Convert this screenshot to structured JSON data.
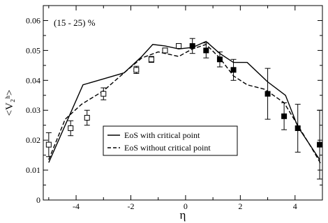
{
  "chart_data": {
    "type": "line",
    "annotation": "(15 - 25) %",
    "xlabel": "η",
    "ylabel": "<V₂ʰ>",
    "xlim": [
      -5.2,
      5.0
    ],
    "ylim": [
      0,
      0.065
    ],
    "x_ticks": [
      -4,
      -2,
      0,
      2,
      4
    ],
    "x_tick_labels": [
      "-4",
      "-2",
      "0",
      "2",
      "4"
    ],
    "y_ticks": [
      0,
      0.01,
      0.02,
      0.03,
      0.04,
      0.05,
      0.06
    ],
    "y_tick_labels": [
      "0",
      "0.01",
      "0.02",
      "0.03",
      "0.04",
      "0.05",
      "0.06"
    ],
    "grid": false,
    "legend_position": "lower-center",
    "series": [
      {
        "name": "EoS with critical point",
        "style": "solid",
        "color": "#000000",
        "x": [
          -5.0,
          -4.4,
          -3.75,
          -3.0,
          -2.25,
          -1.6,
          -1.2,
          -0.75,
          -0.25,
          0.25,
          0.75,
          1.25,
          1.75,
          2.25,
          3.0,
          3.65,
          4.1,
          4.5,
          4.9
        ],
        "y": [
          0.0125,
          0.025,
          0.0385,
          0.0405,
          0.0425,
          0.048,
          0.052,
          0.0515,
          0.0505,
          0.051,
          0.053,
          0.049,
          0.046,
          0.046,
          0.0395,
          0.035,
          0.0245,
          0.019,
          0.0135
        ]
      },
      {
        "name": "EoS without critical point",
        "style": "dashed",
        "color": "#000000",
        "x": [
          -5.0,
          -4.4,
          -3.8,
          -3.0,
          -2.25,
          -1.6,
          -1.0,
          -0.25,
          0.25,
          0.75,
          1.25,
          1.75,
          2.25,
          2.9,
          3.6,
          4.1,
          4.6,
          4.95
        ],
        "y": [
          0.0135,
          0.027,
          0.032,
          0.0365,
          0.0425,
          0.0475,
          0.0495,
          0.048,
          0.0505,
          0.052,
          0.0475,
          0.0415,
          0.0385,
          0.037,
          0.0325,
          0.025,
          0.0175,
          0.012
        ]
      }
    ],
    "data_points": {
      "open": [
        {
          "x": -5.0,
          "y": 0.0185,
          "err": 0.004
        },
        {
          "x": -4.2,
          "y": 0.024,
          "err": 0.0025
        },
        {
          "x": -3.6,
          "y": 0.0275,
          "err": 0.0025
        },
        {
          "x": -3.0,
          "y": 0.0355,
          "err": 0.002
        },
        {
          "x": -1.8,
          "y": 0.0435,
          "err": 0.0012
        },
        {
          "x": -1.25,
          "y": 0.047,
          "err": 0.001
        },
        {
          "x": -0.75,
          "y": 0.05,
          "err": 0.0008
        },
        {
          "x": -0.25,
          "y": 0.0515,
          "err": 0.0008
        }
      ],
      "filled": [
        {
          "x": 0.25,
          "y": 0.0515,
          "err": 0.0025
        },
        {
          "x": 0.75,
          "y": 0.05,
          "err": 0.0025
        },
        {
          "x": 1.25,
          "y": 0.047,
          "err": 0.0025
        },
        {
          "x": 1.75,
          "y": 0.0435,
          "err": 0.0035
        },
        {
          "x": 3.0,
          "y": 0.0355,
          "err": 0.0085
        },
        {
          "x": 3.6,
          "y": 0.028,
          "err": 0.0045
        },
        {
          "x": 4.1,
          "y": 0.024,
          "err": 0.008
        },
        {
          "x": 4.9,
          "y": 0.0185,
          "err": 0.0115
        }
      ]
    }
  }
}
